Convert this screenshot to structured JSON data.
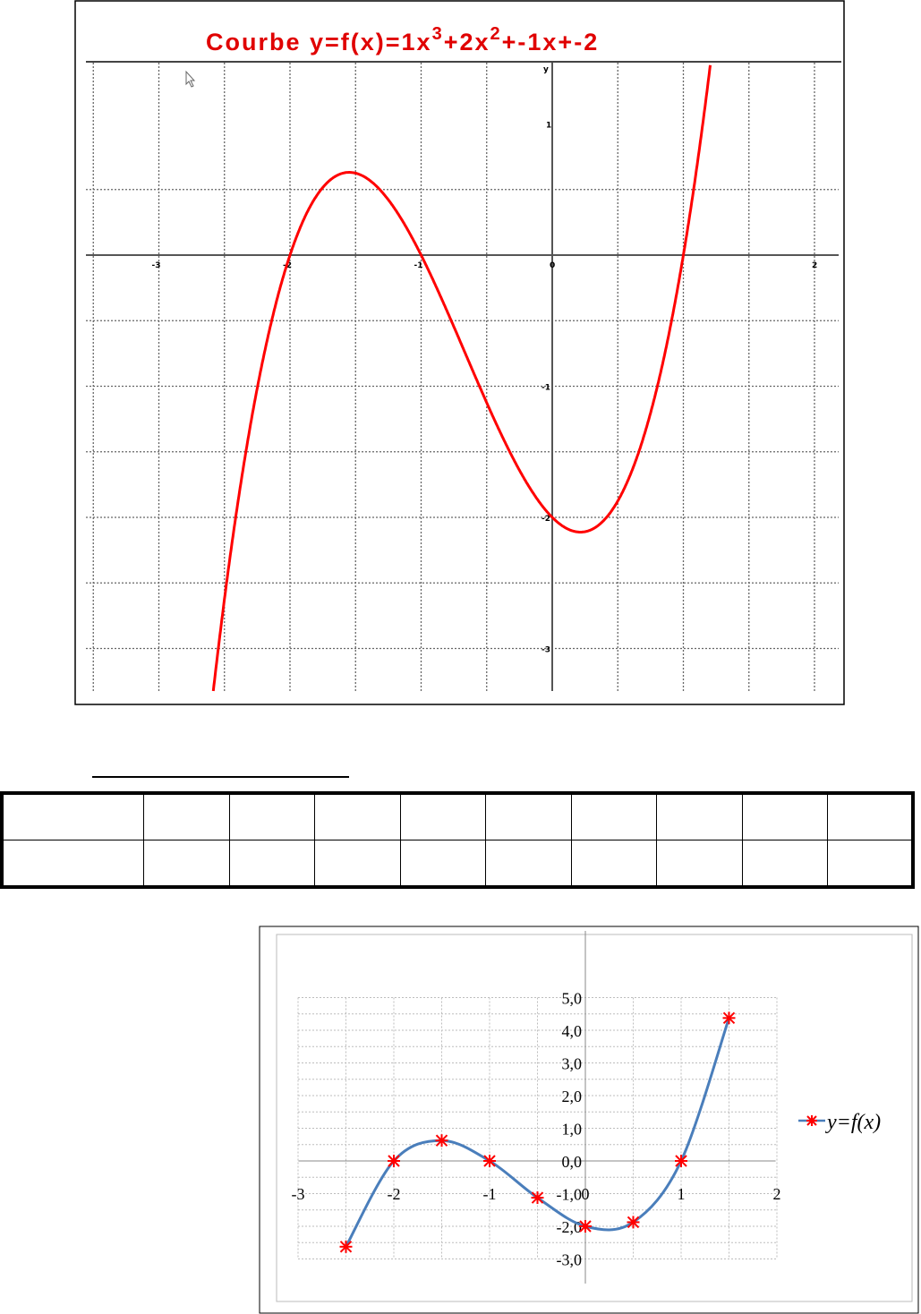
{
  "chart_data": [
    {
      "type": "line",
      "title": "Courbe y=f(x)=1x",
      "title_parts": [
        "Courbe y=f(x)=1x",
        "3",
        "+2x",
        "2",
        "+-1x+-2"
      ],
      "function": "x^3 + 2x^2 - x - 2",
      "coefficients": [
        1,
        2,
        -1,
        -2
      ],
      "x_range": [
        -3.5,
        2.2
      ],
      "y_range": [
        -3.35,
        0.75
      ],
      "axis_labels": {
        "x": "",
        "y": "y"
      },
      "x_ticks": [
        "-3",
        "-2",
        "-1",
        "0",
        "2"
      ],
      "y_ticks": [
        "1",
        "-1",
        "-2",
        "-3"
      ],
      "grid": "dotted",
      "curve_color": "#ff0000",
      "title_color": "#e00000"
    },
    {
      "type": "line",
      "series": [
        {
          "name": "y=f(x)",
          "x": [
            -2.5,
            -2,
            -1.5,
            -1,
            -0.5,
            0,
            0.5,
            1,
            1.5
          ],
          "values": [
            -2.625,
            0,
            0.625,
            0,
            -1.125,
            -2,
            -1.875,
            0,
            4.375
          ],
          "line_color": "#4a7ebb",
          "marker_color": "#ff0000"
        }
      ],
      "x_range": [
        -3,
        2
      ],
      "y_range": [
        -3,
        5
      ],
      "x_ticks": [
        "-3",
        "-2",
        "-1",
        "0",
        "1",
        "2"
      ],
      "y_ticks": [
        "5,0",
        "4,0",
        "3,0",
        "2,0",
        "1,0",
        "0,0",
        "-1,0",
        "-2,0",
        "-3,0"
      ],
      "legend": {
        "label": "y=f(x)",
        "placement": "right"
      },
      "grid": "dotted"
    }
  ]
}
